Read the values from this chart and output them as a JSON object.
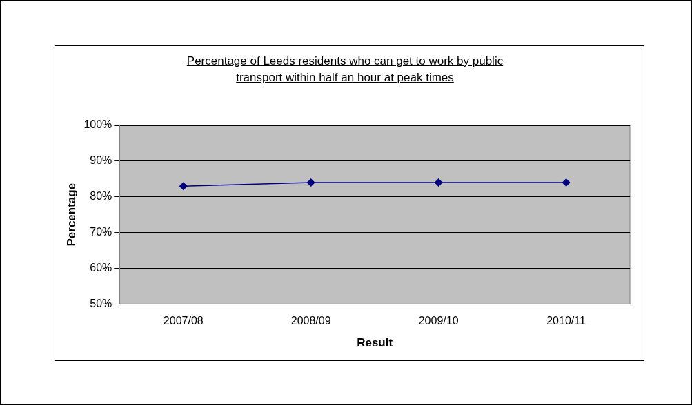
{
  "chart_data": {
    "type": "line",
    "title": "Percentage of Leeds residents who can get to work by public transport within half an hour at peak times",
    "xlabel": "Result",
    "ylabel": "Percentage",
    "categories": [
      "2007/08",
      "2008/09",
      "2009/10",
      "2010/11"
    ],
    "series": [
      {
        "color": "#000080",
        "values": [
          83,
          84,
          84,
          84
        ]
      }
    ],
    "ylim": [
      50,
      100
    ],
    "yticks": [
      {
        "value": 50,
        "label": "50%"
      },
      {
        "value": 60,
        "label": "60%"
      },
      {
        "value": 70,
        "label": "70%"
      },
      {
        "value": 80,
        "label": "80%"
      },
      {
        "value": 90,
        "label": "90%"
      },
      {
        "value": 100,
        "label": "100%"
      }
    ],
    "grid": "y",
    "marker": "diamond",
    "line_style": "solid"
  }
}
